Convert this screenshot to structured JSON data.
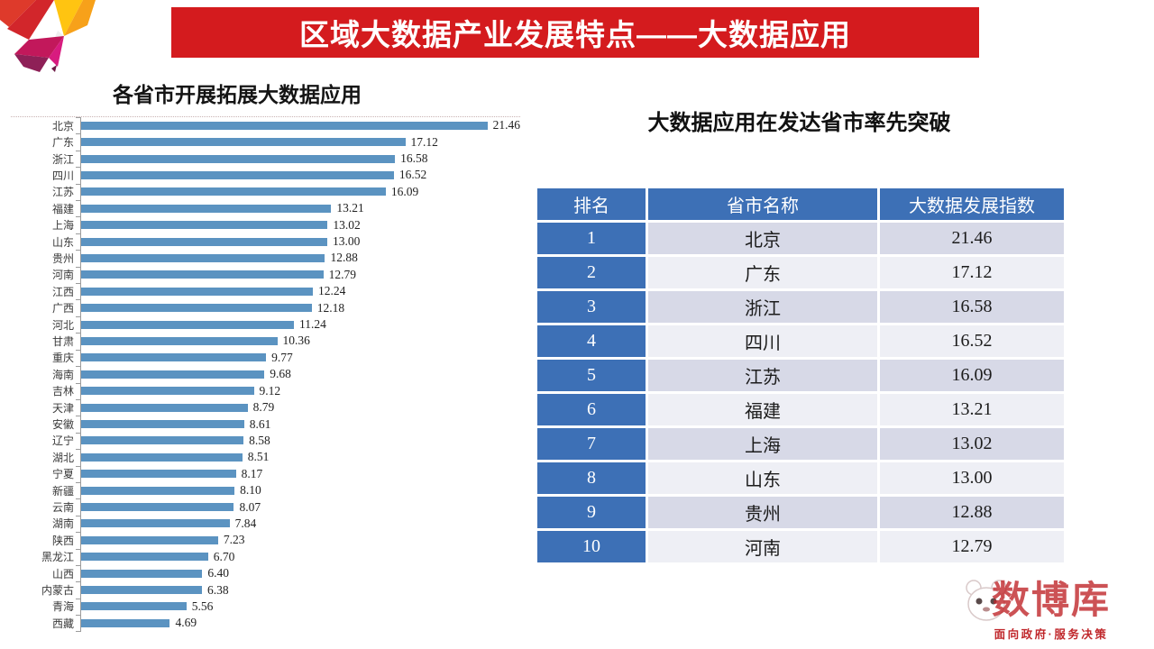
{
  "banner": {
    "title": "区域大数据产业发展特点——大数据应用"
  },
  "chart_data": {
    "type": "bar",
    "orientation": "horizontal",
    "title": "各省市开展拓展大数据应用",
    "categories": [
      "北京",
      "广东",
      "浙江",
      "四川",
      "江苏",
      "福建",
      "上海",
      "山东",
      "贵州",
      "河南",
      "江西",
      "广西",
      "河北",
      "甘肃",
      "重庆",
      "海南",
      "吉林",
      "天津",
      "安徽",
      "辽宁",
      "湖北",
      "宁夏",
      "新疆",
      "云南",
      "湖南",
      "陕西",
      "黑龙江",
      "山西",
      "内蒙古",
      "青海",
      "西藏"
    ],
    "values": [
      21.46,
      17.12,
      16.58,
      16.52,
      16.09,
      13.21,
      13.02,
      13.0,
      12.88,
      12.79,
      12.24,
      12.18,
      11.24,
      10.36,
      9.77,
      9.68,
      9.12,
      8.79,
      8.61,
      8.58,
      8.51,
      8.17,
      8.1,
      8.07,
      7.84,
      7.23,
      6.7,
      6.4,
      6.38,
      5.56,
      4.69
    ],
    "value_label_decimals": 2,
    "xlim": [
      0,
      22.5
    ],
    "grid": false,
    "legend": false,
    "bar_color": "#5B93C1"
  },
  "table": {
    "title": "大数据应用在发达省市率先突破",
    "columns": [
      "排名",
      "省市名称",
      "大数据发展指数"
    ],
    "rows": [
      {
        "rank": "1",
        "name": "北京",
        "value": "21.46"
      },
      {
        "rank": "2",
        "name": "广东",
        "value": "17.12"
      },
      {
        "rank": "3",
        "name": "浙江",
        "value": "16.58"
      },
      {
        "rank": "4",
        "name": "四川",
        "value": "16.52"
      },
      {
        "rank": "5",
        "name": "江苏",
        "value": "16.09"
      },
      {
        "rank": "6",
        "name": "福建",
        "value": "13.21"
      },
      {
        "rank": "7",
        "name": "上海",
        "value": "13.02"
      },
      {
        "rank": "8",
        "name": "山东",
        "value": "13.00"
      },
      {
        "rank": "9",
        "name": "贵州",
        "value": "12.88"
      },
      {
        "rank": "10",
        "name": "河南",
        "value": "12.79"
      }
    ]
  },
  "footer_logo": {
    "brand": "数博库",
    "tagline": "面向政府·服务决策"
  },
  "colors": {
    "banner_red": "#D41B1E",
    "bar_blue": "#5B93C1",
    "table_blue": "#3D70B6",
    "row_odd": "#D7D9E7",
    "row_even": "#EEEFF5",
    "footer_red": "#C0272B"
  }
}
